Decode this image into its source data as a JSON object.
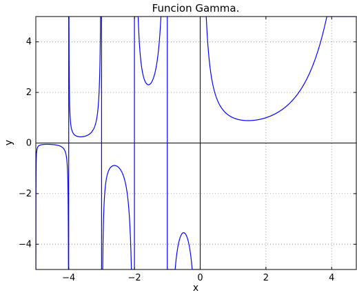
{
  "chart_data": {
    "type": "line",
    "title": "Funcion Gamma.",
    "xlabel": "x",
    "ylabel": "y",
    "xlim": [
      -5,
      4.75
    ],
    "ylim": [
      -5,
      5
    ],
    "xticks": [
      -4,
      -2,
      0,
      2,
      4
    ],
    "yticks": [
      -4,
      -2,
      0,
      2,
      4
    ],
    "xtick_labels": [
      "−4",
      "−2",
      "0",
      "2",
      "4"
    ],
    "ytick_labels": [
      "−4",
      "−2",
      "0",
      "2",
      "4"
    ],
    "grid": true,
    "reference_lines": {
      "x": 0,
      "y": 0
    },
    "asymptotes": [
      -4,
      -3,
      -2,
      -1
    ],
    "clip_range": [
      -5,
      5
    ],
    "series": [
      {
        "function": "gamma",
        "color": "#0000ff",
        "segments": [
          {
            "domain": [
              -5.0,
              -4.0
            ]
          },
          {
            "domain": [
              -4.0,
              -3.0
            ]
          },
          {
            "domain": [
              -3.0,
              -2.0
            ]
          },
          {
            "domain": [
              -2.0,
              -1.0
            ]
          },
          {
            "domain": [
              -1.0,
              0.0
            ]
          },
          {
            "domain": [
              0.0,
              4.75
            ]
          }
        ]
      }
    ]
  }
}
